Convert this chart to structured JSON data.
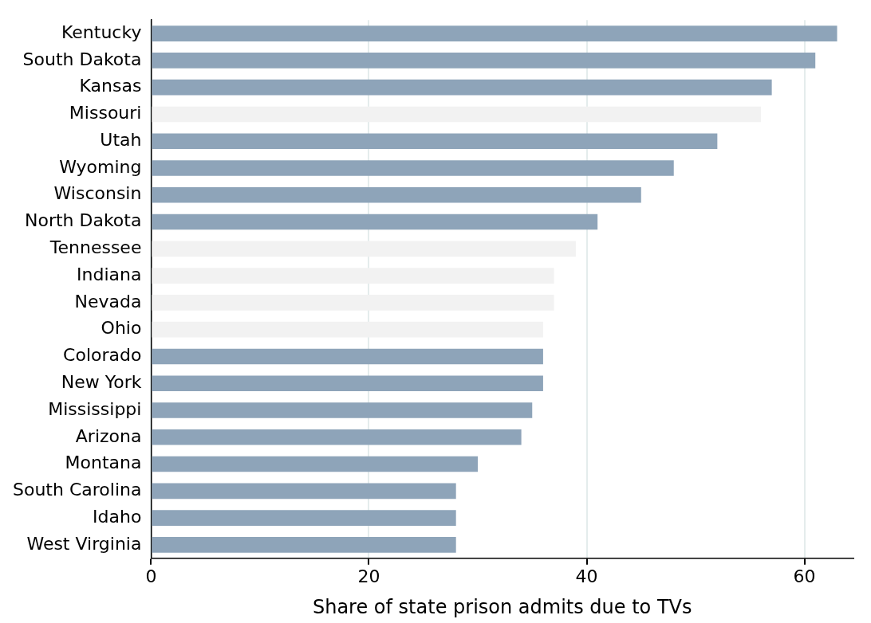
{
  "chart_data": {
    "type": "bar",
    "orientation": "horizontal",
    "xlabel": "Share of state prison admits due to TVs",
    "categories": [
      "Kentucky",
      "South Dakota",
      "Kansas",
      "Missouri",
      "Utah",
      "Wyoming",
      "Wisconsin",
      "North Dakota",
      "Tennessee",
      "Indiana",
      "Nevada",
      "Ohio",
      "Colorado",
      "New York",
      "Mississippi",
      "Arizona",
      "Montana",
      "South Carolina",
      "Idaho",
      "West Virginia"
    ],
    "values": [
      63,
      61,
      57,
      56,
      52,
      48,
      45,
      41,
      39,
      37,
      37,
      36,
      36,
      36,
      35,
      34,
      30,
      28,
      28,
      28
    ],
    "colors": [
      "#8ea4b9",
      "#8ea4b9",
      "#8ea4b9",
      "#f2f2f2",
      "#8ea4b9",
      "#8ea4b9",
      "#8ea4b9",
      "#8ea4b9",
      "#f2f2f2",
      "#f2f2f2",
      "#f2f2f2",
      "#f2f2f2",
      "#8ea4b9",
      "#8ea4b9",
      "#8ea4b9",
      "#8ea4b9",
      "#8ea4b9",
      "#8ea4b9",
      "#8ea4b9",
      "#8ea4b9"
    ],
    "xlim": [
      0,
      64.5
    ],
    "xticks": [
      0,
      20,
      40,
      60
    ],
    "grid": "x",
    "legend": false
  }
}
